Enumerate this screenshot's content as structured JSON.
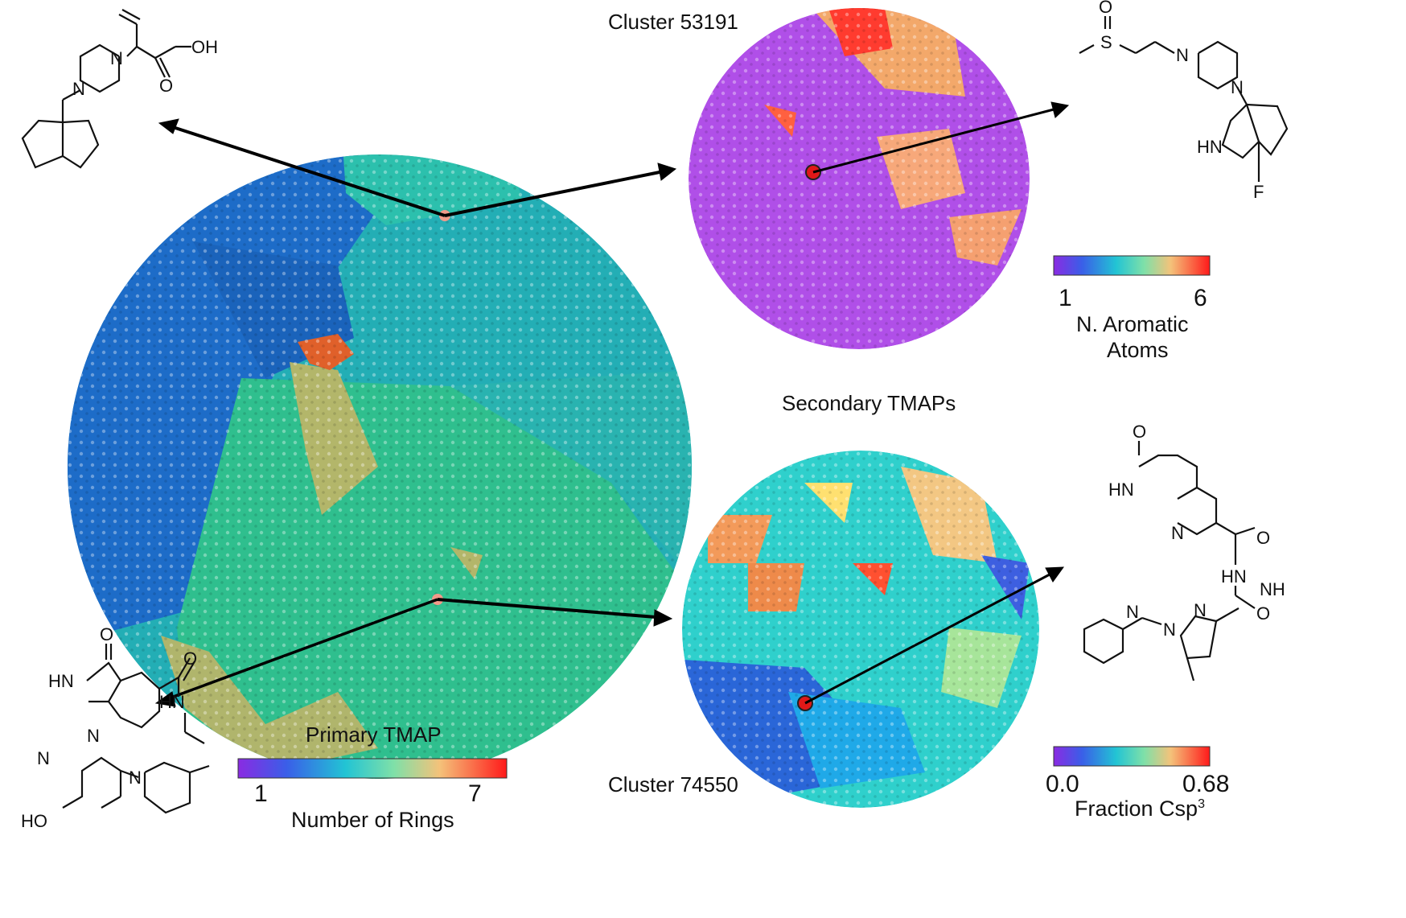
{
  "primary": {
    "title": "Primary TMAP",
    "colorbar": {
      "min": "1",
      "max": "7",
      "label": "Number of Rings"
    },
    "regions": [
      {
        "name": "dark-blue",
        "color": "#1b6fc9"
      },
      {
        "name": "teal",
        "color": "#25b4b8"
      },
      {
        "name": "green",
        "color": "#2fbf8a"
      },
      {
        "name": "olive",
        "color": "#b5b86a"
      },
      {
        "name": "orange",
        "color": "#e0602a"
      }
    ]
  },
  "secondary_title": "Secondary TMAPs",
  "cluster_top": {
    "title": "Cluster 53191",
    "colorbar": {
      "min": "1",
      "max": "6",
      "label_line1": "N. Aromatic",
      "label_line2": "Atoms"
    }
  },
  "cluster_bottom": {
    "title": "Cluster 74550",
    "colorbar": {
      "min": "0.0",
      "max": "0.68",
      "label": "Fraction Csp",
      "label_sup": "3"
    }
  },
  "atoms": {
    "oh": "OH",
    "n": "N",
    "o": "O",
    "s": "S",
    "hn": "HN",
    "f": "F",
    "nh": "NH",
    "ho": "HO"
  }
}
